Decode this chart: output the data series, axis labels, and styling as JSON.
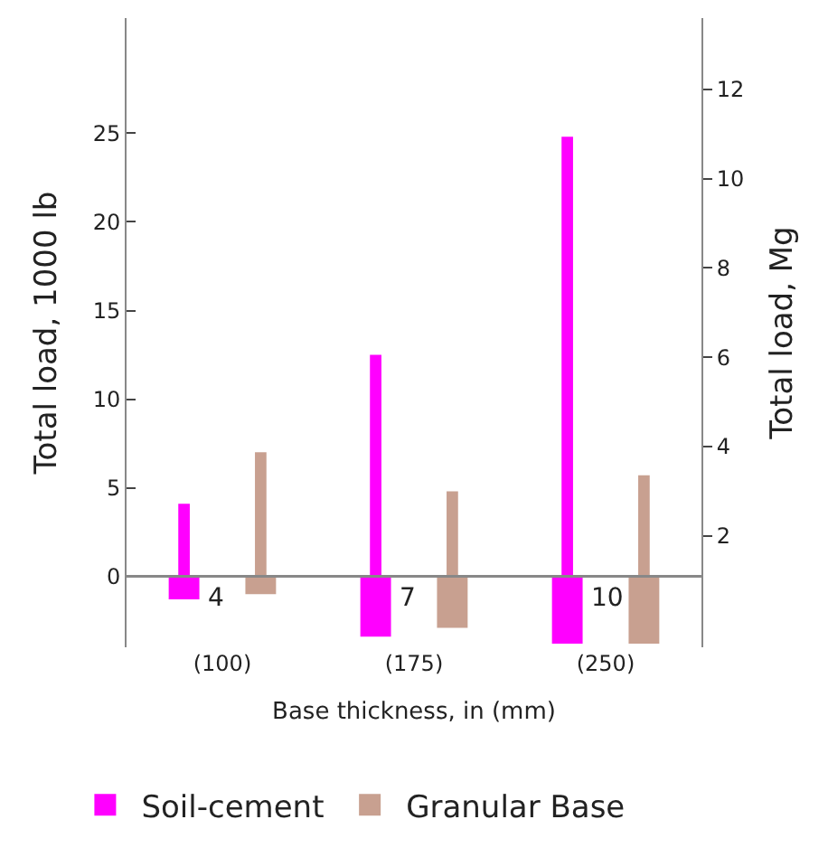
{
  "chart_data": {
    "type": "bar",
    "categories": [
      "(100)",
      "(175)",
      "(250)"
    ],
    "xlabel": "Base thickness, in (mm)",
    "ylabel": "Total load, 1000 lb",
    "y2label": "Total load, Mg",
    "ylim": [
      -4,
      31.5
    ],
    "yticks": [
      0,
      5,
      10,
      15,
      20,
      25
    ],
    "y2lim": [
      -0.5,
      13.6
    ],
    "y2ticks": [
      2,
      4,
      6,
      8,
      10,
      12
    ],
    "legend": "bottom",
    "series": [
      {
        "name": "Soil-cement",
        "color": "#ff00ff",
        "values": [
          4.1,
          12.5,
          24.8
        ]
      },
      {
        "name": "Granular Base",
        "color": "#c8a090",
        "values": [
          7.0,
          4.8,
          5.7
        ]
      },
      {
        "color": "#ff00ff",
        "values": [
          -1.3,
          -3.4,
          -3.8
        ]
      },
      {
        "color": "#c8a090",
        "values": [
          -1.0,
          -2.9,
          -3.8
        ]
      }
    ],
    "ref_lines": [
      {
        "axis": "y",
        "value": 0,
        "color": "#888888"
      }
    ],
    "annotations": [
      "4",
      "7",
      "10"
    ]
  }
}
